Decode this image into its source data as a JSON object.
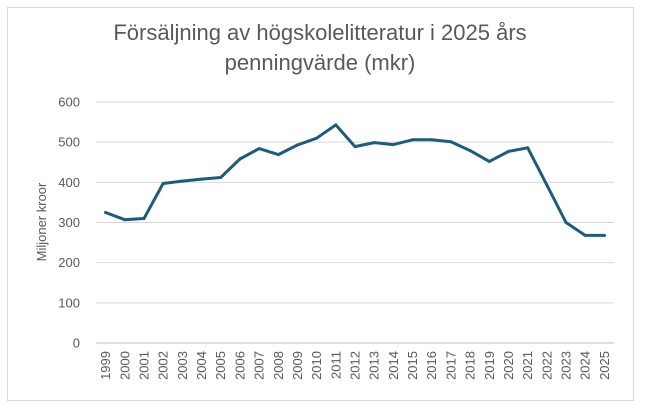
{
  "chart_data": {
    "type": "line",
    "title_line1": "Försäljning av högskolelitteratur i 2025 års",
    "title_line2": "penningvärde (mkr)",
    "xlabel": "",
    "ylabel": "Miljoner kroor",
    "ylim": [
      0,
      600
    ],
    "yticks": [
      "0",
      "100",
      "200",
      "300",
      "400",
      "500",
      "600"
    ],
    "grid": "horizontal",
    "legend": "none",
    "categories": [
      "1999",
      "2000",
      "2001",
      "2002",
      "2003",
      "2004",
      "2005",
      "2006",
      "2007",
      "2008",
      "2009",
      "2010",
      "2011",
      "2012",
      "2013",
      "2014",
      "2015",
      "2016",
      "2017",
      "2018",
      "2019",
      "2020",
      "2021",
      "2022",
      "2023",
      "2024",
      "2025"
    ],
    "series": [
      {
        "color": "#1f5c7a",
        "values": [
          325,
          307,
          310,
          397,
          403,
          408,
          412,
          458,
          484,
          469,
          493,
          510,
          543,
          489,
          499,
          494,
          506,
          506,
          501,
          479,
          452,
          477,
          486,
          393,
          300,
          268,
          268
        ]
      }
    ]
  }
}
